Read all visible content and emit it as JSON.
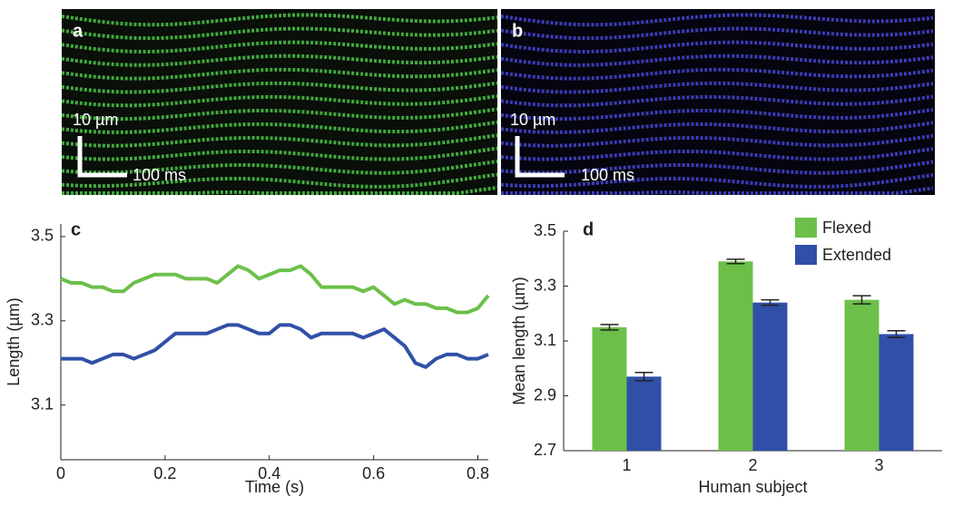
{
  "panels": [
    {
      "label": "a",
      "scale_y": "10 µm",
      "scale_x": "100 ms"
    },
    {
      "label": "b",
      "scale_y": "10 µm",
      "scale_x": "100 ms"
    }
  ],
  "chart_data": [
    {
      "type": "line",
      "label": "c",
      "xlabel": "Time (s)",
      "ylabel": "Length (µm)",
      "x": [
        0,
        0.02,
        0.04,
        0.06,
        0.08,
        0.1,
        0.12,
        0.14,
        0.16,
        0.18,
        0.2,
        0.22,
        0.24,
        0.26,
        0.28,
        0.3,
        0.32,
        0.34,
        0.36,
        0.38,
        0.4,
        0.42,
        0.44,
        0.46,
        0.48,
        0.5,
        0.52,
        0.54,
        0.56,
        0.58,
        0.6,
        0.62,
        0.64,
        0.66,
        0.68,
        0.7,
        0.72,
        0.74,
        0.76,
        0.78,
        0.8,
        0.82
      ],
      "series": [
        {
          "color": "#6cc04a",
          "values": [
            3.4,
            3.39,
            3.39,
            3.38,
            3.38,
            3.37,
            3.37,
            3.39,
            3.4,
            3.41,
            3.41,
            3.41,
            3.4,
            3.4,
            3.4,
            3.39,
            3.41,
            3.43,
            3.42,
            3.4,
            3.41,
            3.42,
            3.42,
            3.43,
            3.41,
            3.38,
            3.38,
            3.38,
            3.38,
            3.37,
            3.38,
            3.36,
            3.34,
            3.35,
            3.34,
            3.34,
            3.33,
            3.33,
            3.32,
            3.32,
            3.33,
            3.36
          ]
        },
        {
          "color": "#3050a8",
          "values": [
            3.21,
            3.21,
            3.21,
            3.2,
            3.21,
            3.22,
            3.22,
            3.21,
            3.22,
            3.23,
            3.25,
            3.27,
            3.27,
            3.27,
            3.27,
            3.28,
            3.29,
            3.29,
            3.28,
            3.27,
            3.27,
            3.29,
            3.29,
            3.28,
            3.26,
            3.27,
            3.27,
            3.27,
            3.27,
            3.26,
            3.27,
            3.28,
            3.26,
            3.24,
            3.2,
            3.19,
            3.21,
            3.22,
            3.22,
            3.21,
            3.21,
            3.22
          ]
        }
      ],
      "xlim": [
        0,
        0.82
      ],
      "xticks": [
        0,
        0.2,
        0.4,
        0.6,
        0.8
      ],
      "ylim": [
        2.97,
        3.53
      ],
      "yticks": [
        3.1,
        3.3,
        3.5
      ]
    },
    {
      "type": "bar",
      "label": "d",
      "xlabel": "Human subject",
      "ylabel": "Mean length (µm)",
      "categories": [
        "1",
        "2",
        "3"
      ],
      "series": [
        {
          "name": "Flexed",
          "color": "#6cc04a",
          "values": [
            3.15,
            3.39,
            3.25
          ],
          "errors": [
            0.01,
            0.008,
            0.015
          ]
        },
        {
          "name": "Extended",
          "color": "#3050a8",
          "values": [
            2.97,
            3.24,
            3.125
          ],
          "errors": [
            0.015,
            0.01,
            0.012
          ]
        }
      ],
      "ylim": [
        2.7,
        3.5
      ],
      "yticks": [
        2.7,
        2.9,
        3.1,
        3.3,
        3.5
      ],
      "legend": "top-right"
    }
  ]
}
